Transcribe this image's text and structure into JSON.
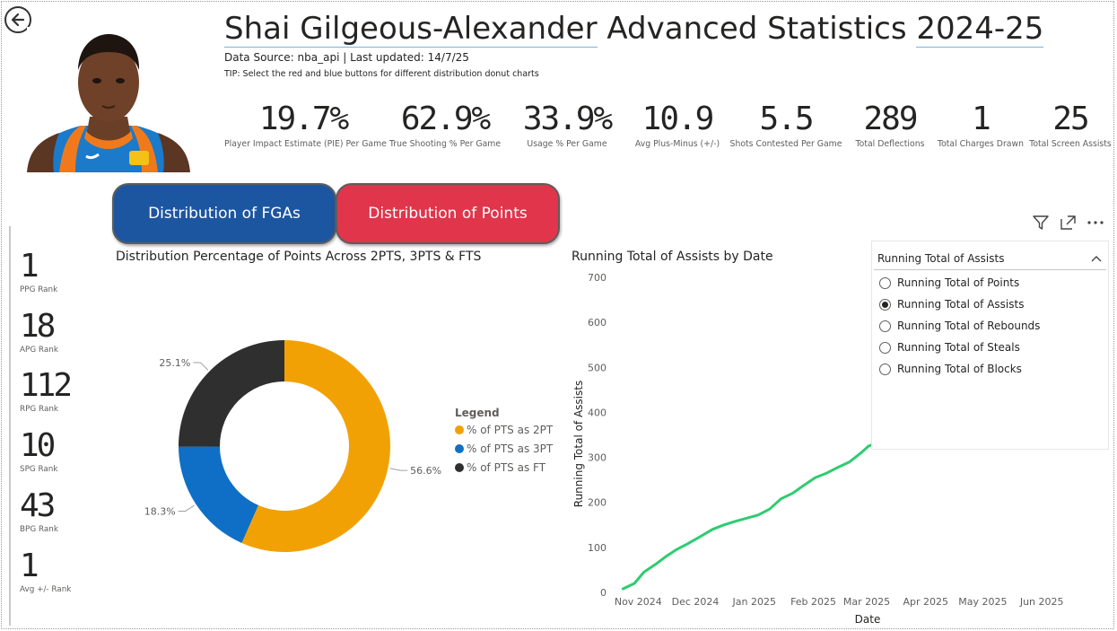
{
  "header": {
    "title_name": "Shai Gilgeous-Alexander",
    "title_mid": "Advanced Statistics",
    "title_season": "2024-25",
    "data_source": "Data Source: nba_api | Last updated: 14/7/25",
    "tip": "TIP: Select the red and blue buttons for different distribution donut charts"
  },
  "kpis": [
    {
      "value": "19.7%",
      "label": "Player Impact Estimate (PIE) Per Game"
    },
    {
      "value": "62.9%",
      "label": "True Shooting % Per Game"
    },
    {
      "value": "33.9%",
      "label": "Usage % Per Game"
    },
    {
      "value": "10.9",
      "label": "Avg Plus-Minus (+/-)"
    },
    {
      "value": "5.5",
      "label": "Shots Contested Per Game"
    },
    {
      "value": "289",
      "label": "Total Deflections"
    },
    {
      "value": "1",
      "label": "Total Charges Drawn"
    },
    {
      "value": "25",
      "label": "Total Screen Assists"
    }
  ],
  "buttons": {
    "fga": "Distribution of FGAs",
    "points": "Distribution of Points"
  },
  "ranks": [
    {
      "value": "1",
      "label": "PPG Rank"
    },
    {
      "value": "18",
      "label": "APG Rank"
    },
    {
      "value": "112",
      "label": "RPG Rank"
    },
    {
      "value": "10",
      "label": "SPG Rank"
    },
    {
      "value": "43",
      "label": "BPG Rank"
    },
    {
      "value": "1",
      "label": "Avg +/- Rank"
    }
  ],
  "colors": {
    "two_pt": "#f2a104",
    "three_pt": "#0f6fc6",
    "ft": "#2f2f2f",
    "line": "#2ecc71",
    "fga_btn": "#1d56a0",
    "pts_btn": "#e0354b"
  },
  "chart_data": [
    {
      "type": "pie",
      "title": "Distribution Percentage of Points Across 2PTS, 3PTS & FTS",
      "legend_title": "Legend",
      "legend_position": "right",
      "slices": [
        {
          "name": "% of PTS as 2PT",
          "value": 56.6,
          "label": "56.6%"
        },
        {
          "name": "% of PTS as 3PT",
          "value": 18.3,
          "label": "18.3%"
        },
        {
          "name": "% of PTS as FT",
          "value": 25.1,
          "label": "25.1%"
        }
      ]
    },
    {
      "type": "line",
      "title": "Running Total of Assists by Date",
      "xlabel": "Date",
      "ylabel": "Running Total of Assists",
      "ylim": [
        0,
        700
      ],
      "yticks": [
        0,
        100,
        200,
        300,
        400,
        500,
        600,
        700
      ],
      "xticks": [
        "Nov 2024",
        "Dec 2024",
        "Jan 2025",
        "Feb 2025",
        "Mar 2025",
        "Apr 2025",
        "May 2025",
        "Jun 2025"
      ],
      "grid": false,
      "series": [
        {
          "values": [
            [
              "2024-10-24",
              8
            ],
            [
              "2024-10-30",
              20
            ],
            [
              "2024-11-04",
              45
            ],
            [
              "2024-11-10",
              62
            ],
            [
              "2024-11-15",
              78
            ],
            [
              "2024-11-21",
              95
            ],
            [
              "2024-11-27",
              108
            ],
            [
              "2024-12-04",
              125
            ],
            [
              "2024-12-10",
              140
            ],
            [
              "2024-12-16",
              150
            ],
            [
              "2024-12-22",
              158
            ],
            [
              "2024-12-28",
              165
            ],
            [
              "2025-01-03",
              172
            ],
            [
              "2025-01-09",
              185
            ],
            [
              "2025-01-15",
              208
            ],
            [
              "2025-01-21",
              220
            ],
            [
              "2025-01-27",
              238
            ],
            [
              "2025-02-02",
              255
            ],
            [
              "2025-02-08",
              265
            ],
            [
              "2025-02-14",
              278
            ],
            [
              "2025-02-20",
              290
            ],
            [
              "2025-02-26",
              310
            ],
            [
              "2025-03-02",
              325
            ],
            [
              "2025-03-08",
              335
            ],
            [
              "2025-03-12",
              352
            ],
            [
              "2025-03-15",
              358
            ]
          ]
        }
      ]
    }
  ],
  "slicer": {
    "selected_label": "Running Total of Assists",
    "options": [
      {
        "label": "Running Total of Points",
        "selected": false
      },
      {
        "label": "Running Total of Assists",
        "selected": true
      },
      {
        "label": "Running Total of Rebounds",
        "selected": false
      },
      {
        "label": "Running Total of Steals",
        "selected": false
      },
      {
        "label": "Running Total of Blocks",
        "selected": false
      }
    ]
  }
}
